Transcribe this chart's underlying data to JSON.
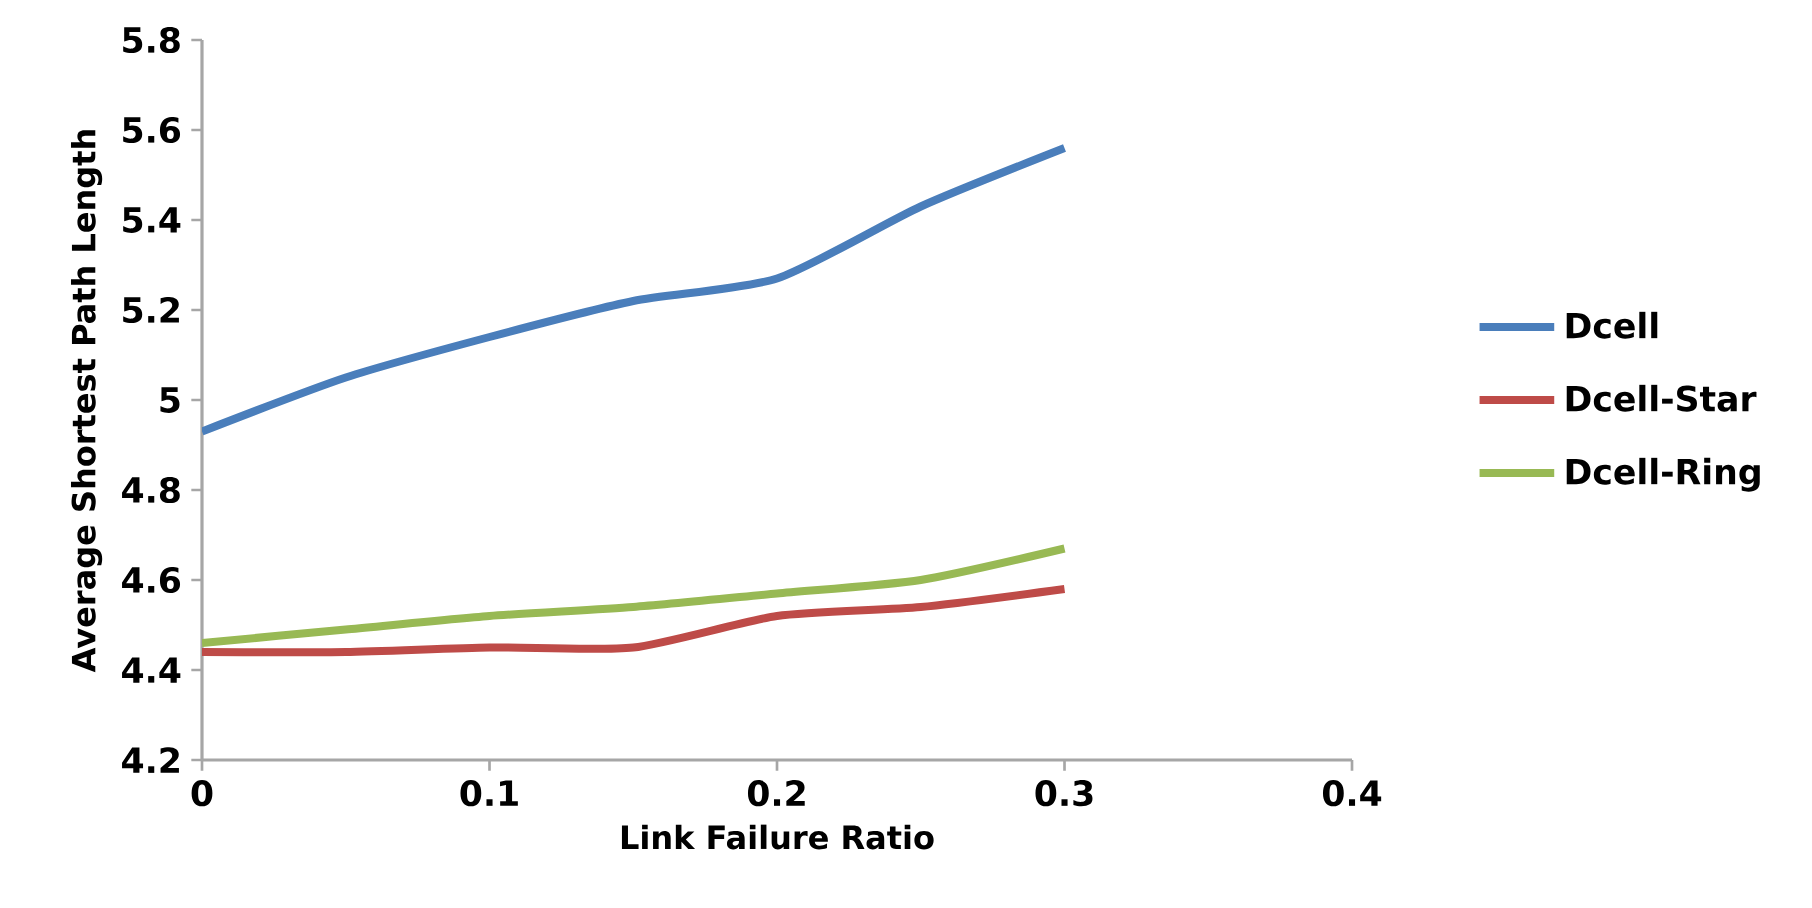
{
  "chart_data": {
    "type": "line",
    "xlabel": "Link Failure Ratio",
    "ylabel": "Average Shortest Path Length",
    "x": [
      0,
      0.05,
      0.1,
      0.15,
      0.2,
      0.25,
      0.3
    ],
    "series": [
      {
        "name": "Dcell",
        "color": "#4a7ebb",
        "values": [
          4.93,
          5.05,
          5.14,
          5.22,
          5.27,
          5.43,
          5.56
        ]
      },
      {
        "name": "Dcell-Star",
        "color": "#be4b48",
        "values": [
          4.44,
          4.44,
          4.45,
          4.45,
          4.52,
          4.54,
          4.58
        ]
      },
      {
        "name": "Dcell-Ring",
        "color": "#98b954",
        "values": [
          4.46,
          4.49,
          4.52,
          4.54,
          4.57,
          4.6,
          4.67
        ]
      }
    ],
    "xlim": [
      0,
      0.4
    ],
    "xticks": [
      0,
      0.1,
      0.2,
      0.3,
      0.4
    ],
    "ylim": [
      4.2,
      5.8
    ],
    "yticks": [
      4.2,
      4.4,
      4.6,
      4.8,
      5,
      5.2,
      5.4,
      5.6,
      5.8
    ],
    "grid": false,
    "legend": "right",
    "marker": "none",
    "line_style": "solid"
  }
}
